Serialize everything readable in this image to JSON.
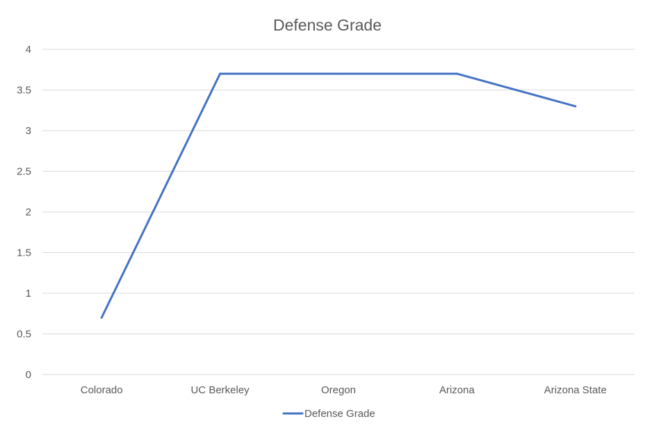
{
  "chart_data": {
    "type": "line",
    "title": "Defense Grade",
    "xlabel": "",
    "ylabel": "",
    "categories": [
      "Colorado",
      "UC Berkeley",
      "Oregon",
      "Arizona",
      "Arizona State"
    ],
    "series": [
      {
        "name": "Defense Grade",
        "values": [
          0.7,
          3.7,
          3.7,
          3.7,
          3.3
        ]
      }
    ],
    "ylim": [
      0,
      4
    ],
    "yticks": [
      0,
      0.5,
      1,
      1.5,
      2,
      2.5,
      3,
      3.5,
      4
    ],
    "grid": true,
    "legend_position": "bottom",
    "colors": {
      "series": "#4472c4",
      "grid": "#d9d9d9",
      "text": "#595959"
    }
  }
}
